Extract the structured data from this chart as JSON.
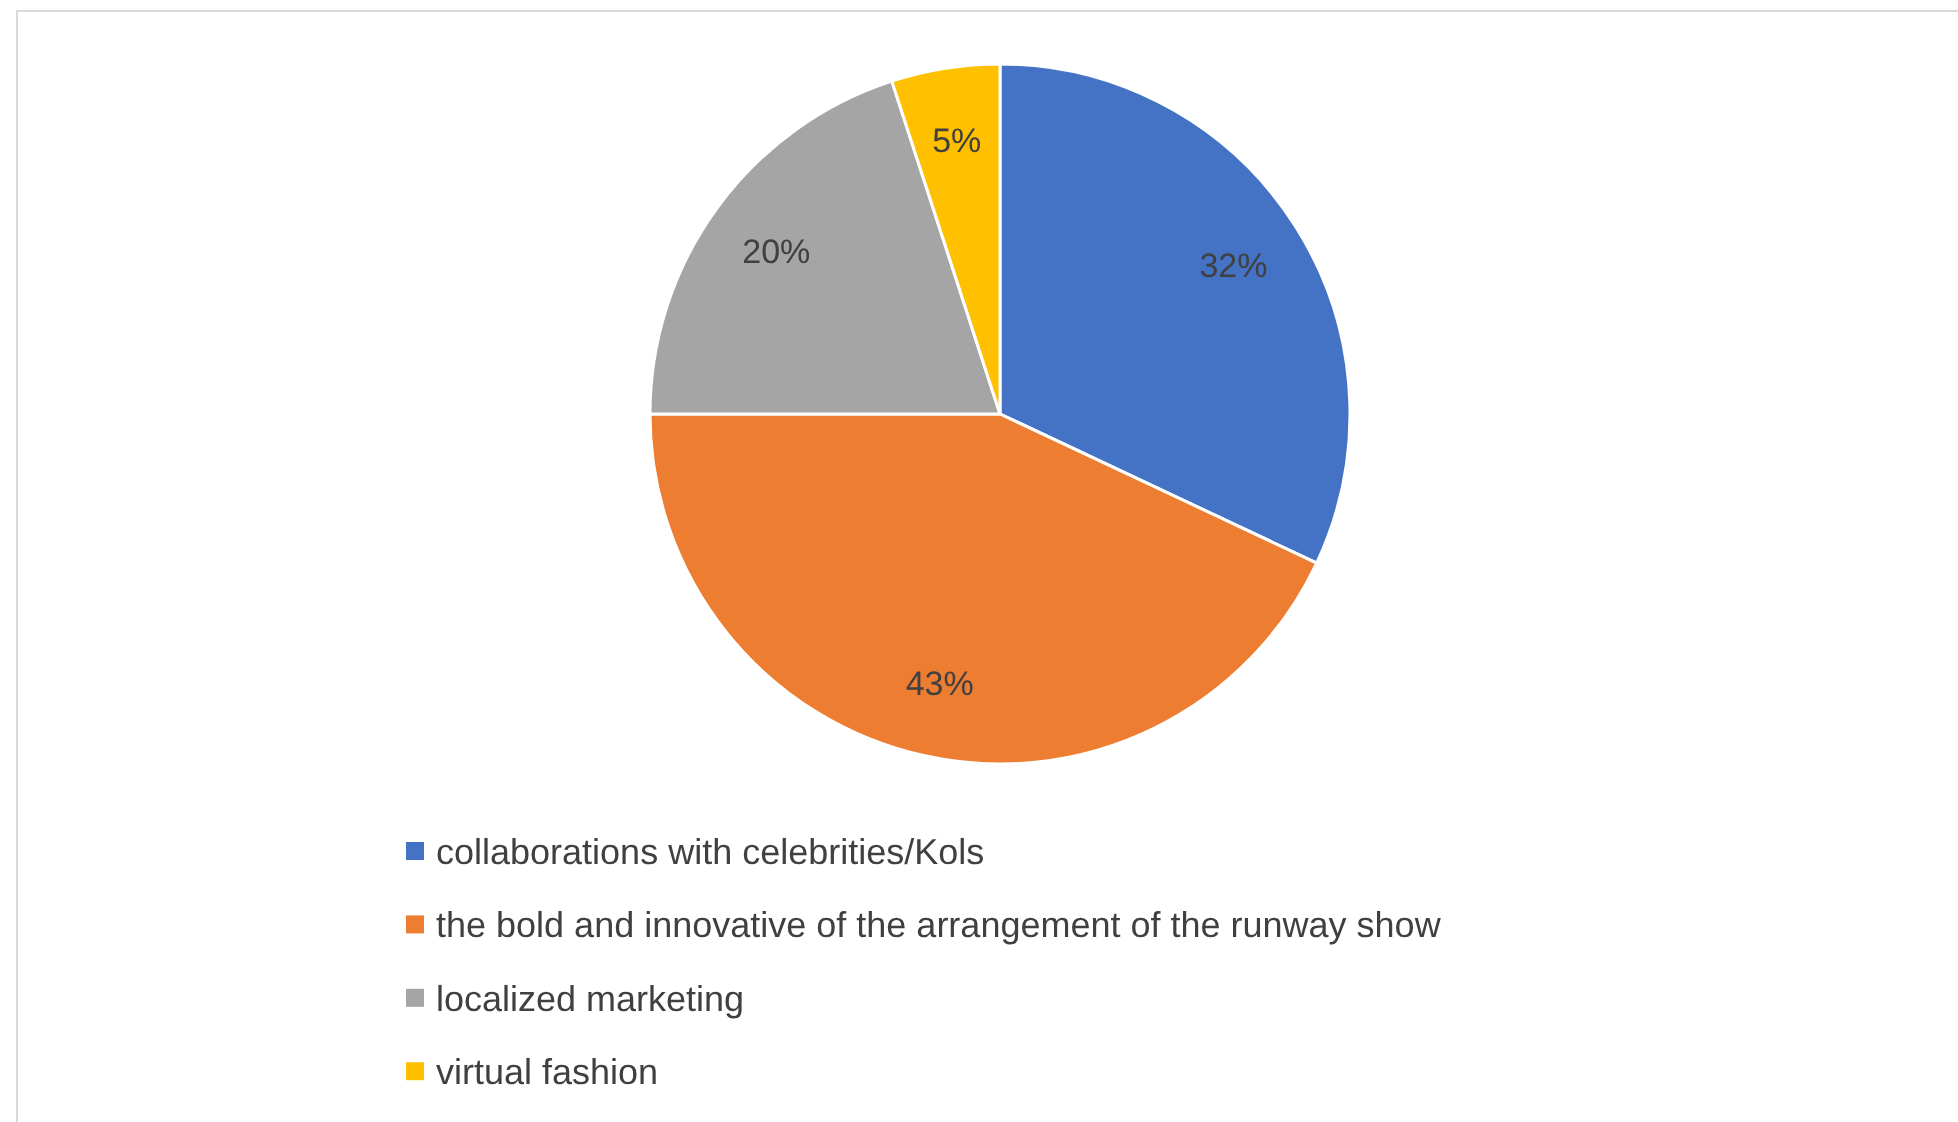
{
  "chart_data": {
    "type": "pie",
    "categories": [
      "collaborations with celebrities/Kols",
      "the bold and innovative of the arrangement of the runway show",
      "localized marketing",
      "virtual fashion"
    ],
    "values": [
      32,
      43,
      20,
      5
    ],
    "colors": [
      "#4472c4",
      "#ed7d31",
      "#a5a5a5",
      "#ffc000"
    ],
    "value_labels": [
      "32%",
      "43%",
      "20%",
      "5%"
    ],
    "legend": "bottom"
  }
}
